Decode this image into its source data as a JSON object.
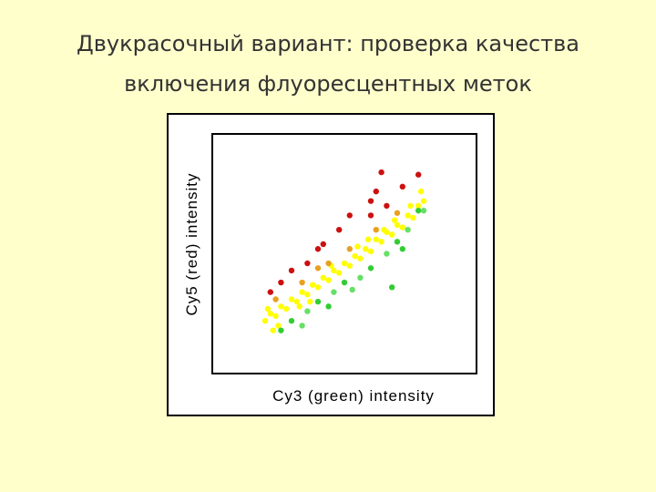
{
  "chart_data": {
    "type": "scatter",
    "title": "Двукрасочный вариант: проверка качества",
    "subtitle": "включения флуоресцентных меток",
    "x_label": "Cy3 (green) intensity",
    "y_label": "Cy5 (red) intensity",
    "xlim": [
      0,
      100
    ],
    "ylim": [
      0,
      100
    ],
    "x": [
      20,
      22,
      24,
      26,
      28,
      30,
      32,
      34,
      36,
      38,
      40,
      42,
      44,
      46,
      48,
      50,
      52,
      54,
      56,
      58,
      60,
      62,
      64,
      66,
      68,
      70,
      72,
      74,
      76,
      78,
      80,
      21,
      25,
      33,
      45,
      55,
      65,
      75,
      79,
      23,
      37,
      59,
      69,
      24,
      34,
      44,
      52,
      62,
      70,
      40,
      22,
      30,
      36,
      26,
      40,
      48,
      52,
      60,
      62,
      66,
      72,
      78,
      64,
      60,
      42,
      26,
      30,
      36,
      40,
      46,
      50,
      56,
      60,
      66,
      70,
      74,
      78,
      34,
      44,
      53,
      68,
      80,
      72
    ],
    "y": [
      22,
      25,
      24,
      28,
      27,
      31,
      30,
      34,
      33,
      37,
      36,
      40,
      39,
      43,
      42,
      46,
      45,
      49,
      48,
      52,
      51,
      56,
      55,
      59,
      58,
      62,
      61,
      66,
      65,
      70,
      72,
      27,
      20,
      28,
      45,
      53,
      60,
      70,
      76,
      18,
      30,
      56,
      64,
      31,
      38,
      46,
      52,
      60,
      67,
      44,
      34,
      43,
      46,
      38,
      52,
      60,
      66,
      72,
      76,
      70,
      78,
      83,
      84,
      66,
      54,
      18,
      22,
      26,
      30,
      34,
      38,
      40,
      44,
      50,
      55,
      60,
      68,
      20,
      28,
      35,
      36,
      68,
      52
    ],
    "colors": [
      "#ffff00",
      "#ffff00",
      "#ffff00",
      "#ffff00",
      "#ffff00",
      "#ffff00",
      "#ffff00",
      "#ffff00",
      "#ffff00",
      "#ffff00",
      "#ffff00",
      "#ffff00",
      "#ffff00",
      "#ffff00",
      "#ffff00",
      "#ffff00",
      "#ffff00",
      "#ffff00",
      "#ffff00",
      "#ffff00",
      "#ffff00",
      "#ffff00",
      "#ffff00",
      "#ffff00",
      "#ffff00",
      "#ffff00",
      "#ffff00",
      "#ffff00",
      "#ffff00",
      "#ffff00",
      "#ffff00",
      "#ffff00",
      "#ffff00",
      "#ffff00",
      "#ffff00",
      "#ffff00",
      "#ffff00",
      "#ffff00",
      "#ffff00",
      "#ffff00",
      "#ffff00",
      "#ffff00",
      "#ffff00",
      "#e8a020",
      "#e8a020",
      "#e8a020",
      "#e8a020",
      "#e8a020",
      "#e8a020",
      "#e8a020",
      "#cc1010",
      "#cc1010",
      "#cc1010",
      "#cc1010",
      "#cc1010",
      "#cc1010",
      "#cc1010",
      "#cc1010",
      "#cc1010",
      "#cc1010",
      "#cc1010",
      "#cc1010",
      "#cc1010",
      "#cc1010",
      "#cc1010",
      "#33cc33",
      "#33cc33",
      "#66e066",
      "#33cc33",
      "#66e066",
      "#33cc33",
      "#66e066",
      "#33cc33",
      "#66e066",
      "#33cc33",
      "#66e066",
      "#33cc33",
      "#66e066",
      "#33cc33",
      "#66e066",
      "#33cc33",
      "#66e066",
      "#33cc33"
    ]
  }
}
